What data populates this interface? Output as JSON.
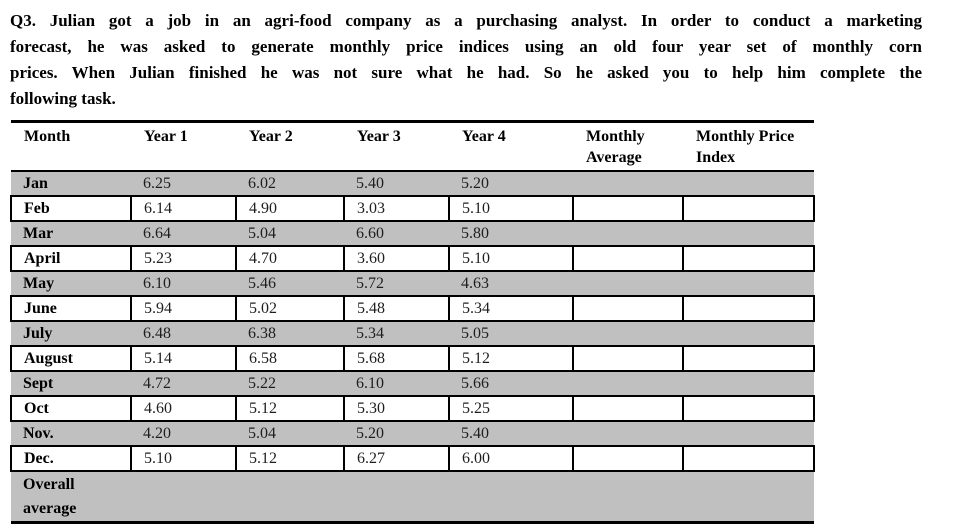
{
  "question": {
    "lines": [
      "Q3. Julian got a job in an agri-food company as a purchasing analyst.  In order to conduct a marketing",
      "forecast, he was asked to generate monthly price indices using an old four year set of monthly corn",
      "prices. When Julian finished he was not sure what he had. So he asked you to help him complete the",
      "following task."
    ]
  },
  "table": {
    "columns": [
      "Month",
      "Year 1",
      "Year 2",
      "Year 3",
      "Year 4",
      "Monthly Average",
      "Monthly Price Index"
    ],
    "rows": [
      {
        "label": "Jan",
        "values": [
          "6.25",
          "6.02",
          "5.40",
          "5.20",
          "",
          ""
        ],
        "shaded": true,
        "footer": false
      },
      {
        "label": "Feb",
        "values": [
          "6.14",
          "4.90",
          "3.03",
          "5.10",
          "",
          ""
        ],
        "shaded": false,
        "footer": false
      },
      {
        "label": "Mar",
        "values": [
          "6.64",
          "5.04",
          "6.60",
          "5.80",
          "",
          ""
        ],
        "shaded": true,
        "footer": false
      },
      {
        "label": "April",
        "values": [
          "5.23",
          "4.70",
          "3.60",
          "5.10",
          "",
          ""
        ],
        "shaded": false,
        "footer": false
      },
      {
        "label": "May",
        "values": [
          "6.10",
          "5.46",
          "5.72",
          "4.63",
          "",
          ""
        ],
        "shaded": true,
        "footer": false
      },
      {
        "label": "June",
        "values": [
          "5.94",
          "5.02",
          "5.48",
          "5.34",
          "",
          ""
        ],
        "shaded": false,
        "footer": false
      },
      {
        "label": "July",
        "values": [
          "6.48",
          "6.38",
          "5.34",
          "5.05",
          "",
          ""
        ],
        "shaded": true,
        "footer": false
      },
      {
        "label": "August",
        "values": [
          "5.14",
          "6.58",
          "5.68",
          "5.12",
          "",
          ""
        ],
        "shaded": false,
        "footer": false
      },
      {
        "label": "Sept",
        "values": [
          "4.72",
          "5.22",
          "6.10",
          "5.66",
          "",
          ""
        ],
        "shaded": true,
        "footer": false
      },
      {
        "label": "Oct",
        "values": [
          "4.60",
          "5.12",
          "5.30",
          "5.25",
          "",
          ""
        ],
        "shaded": false,
        "footer": false
      },
      {
        "label": "Nov.",
        "values": [
          "4.20",
          "5.04",
          "5.20",
          "5.40",
          "",
          ""
        ],
        "shaded": true,
        "footer": false
      },
      {
        "label": "Dec.",
        "values": [
          "5.10",
          "5.12",
          "6.27",
          "6.00",
          "",
          ""
        ],
        "shaded": false,
        "footer": false
      },
      {
        "label": "Overall average",
        "values": [
          "",
          "",
          "",
          "",
          "",
          ""
        ],
        "shaded": true,
        "footer": true
      }
    ],
    "colors": {
      "shaded_row": "#c0c0c0",
      "border": "#000000",
      "text": "#000000"
    }
  }
}
